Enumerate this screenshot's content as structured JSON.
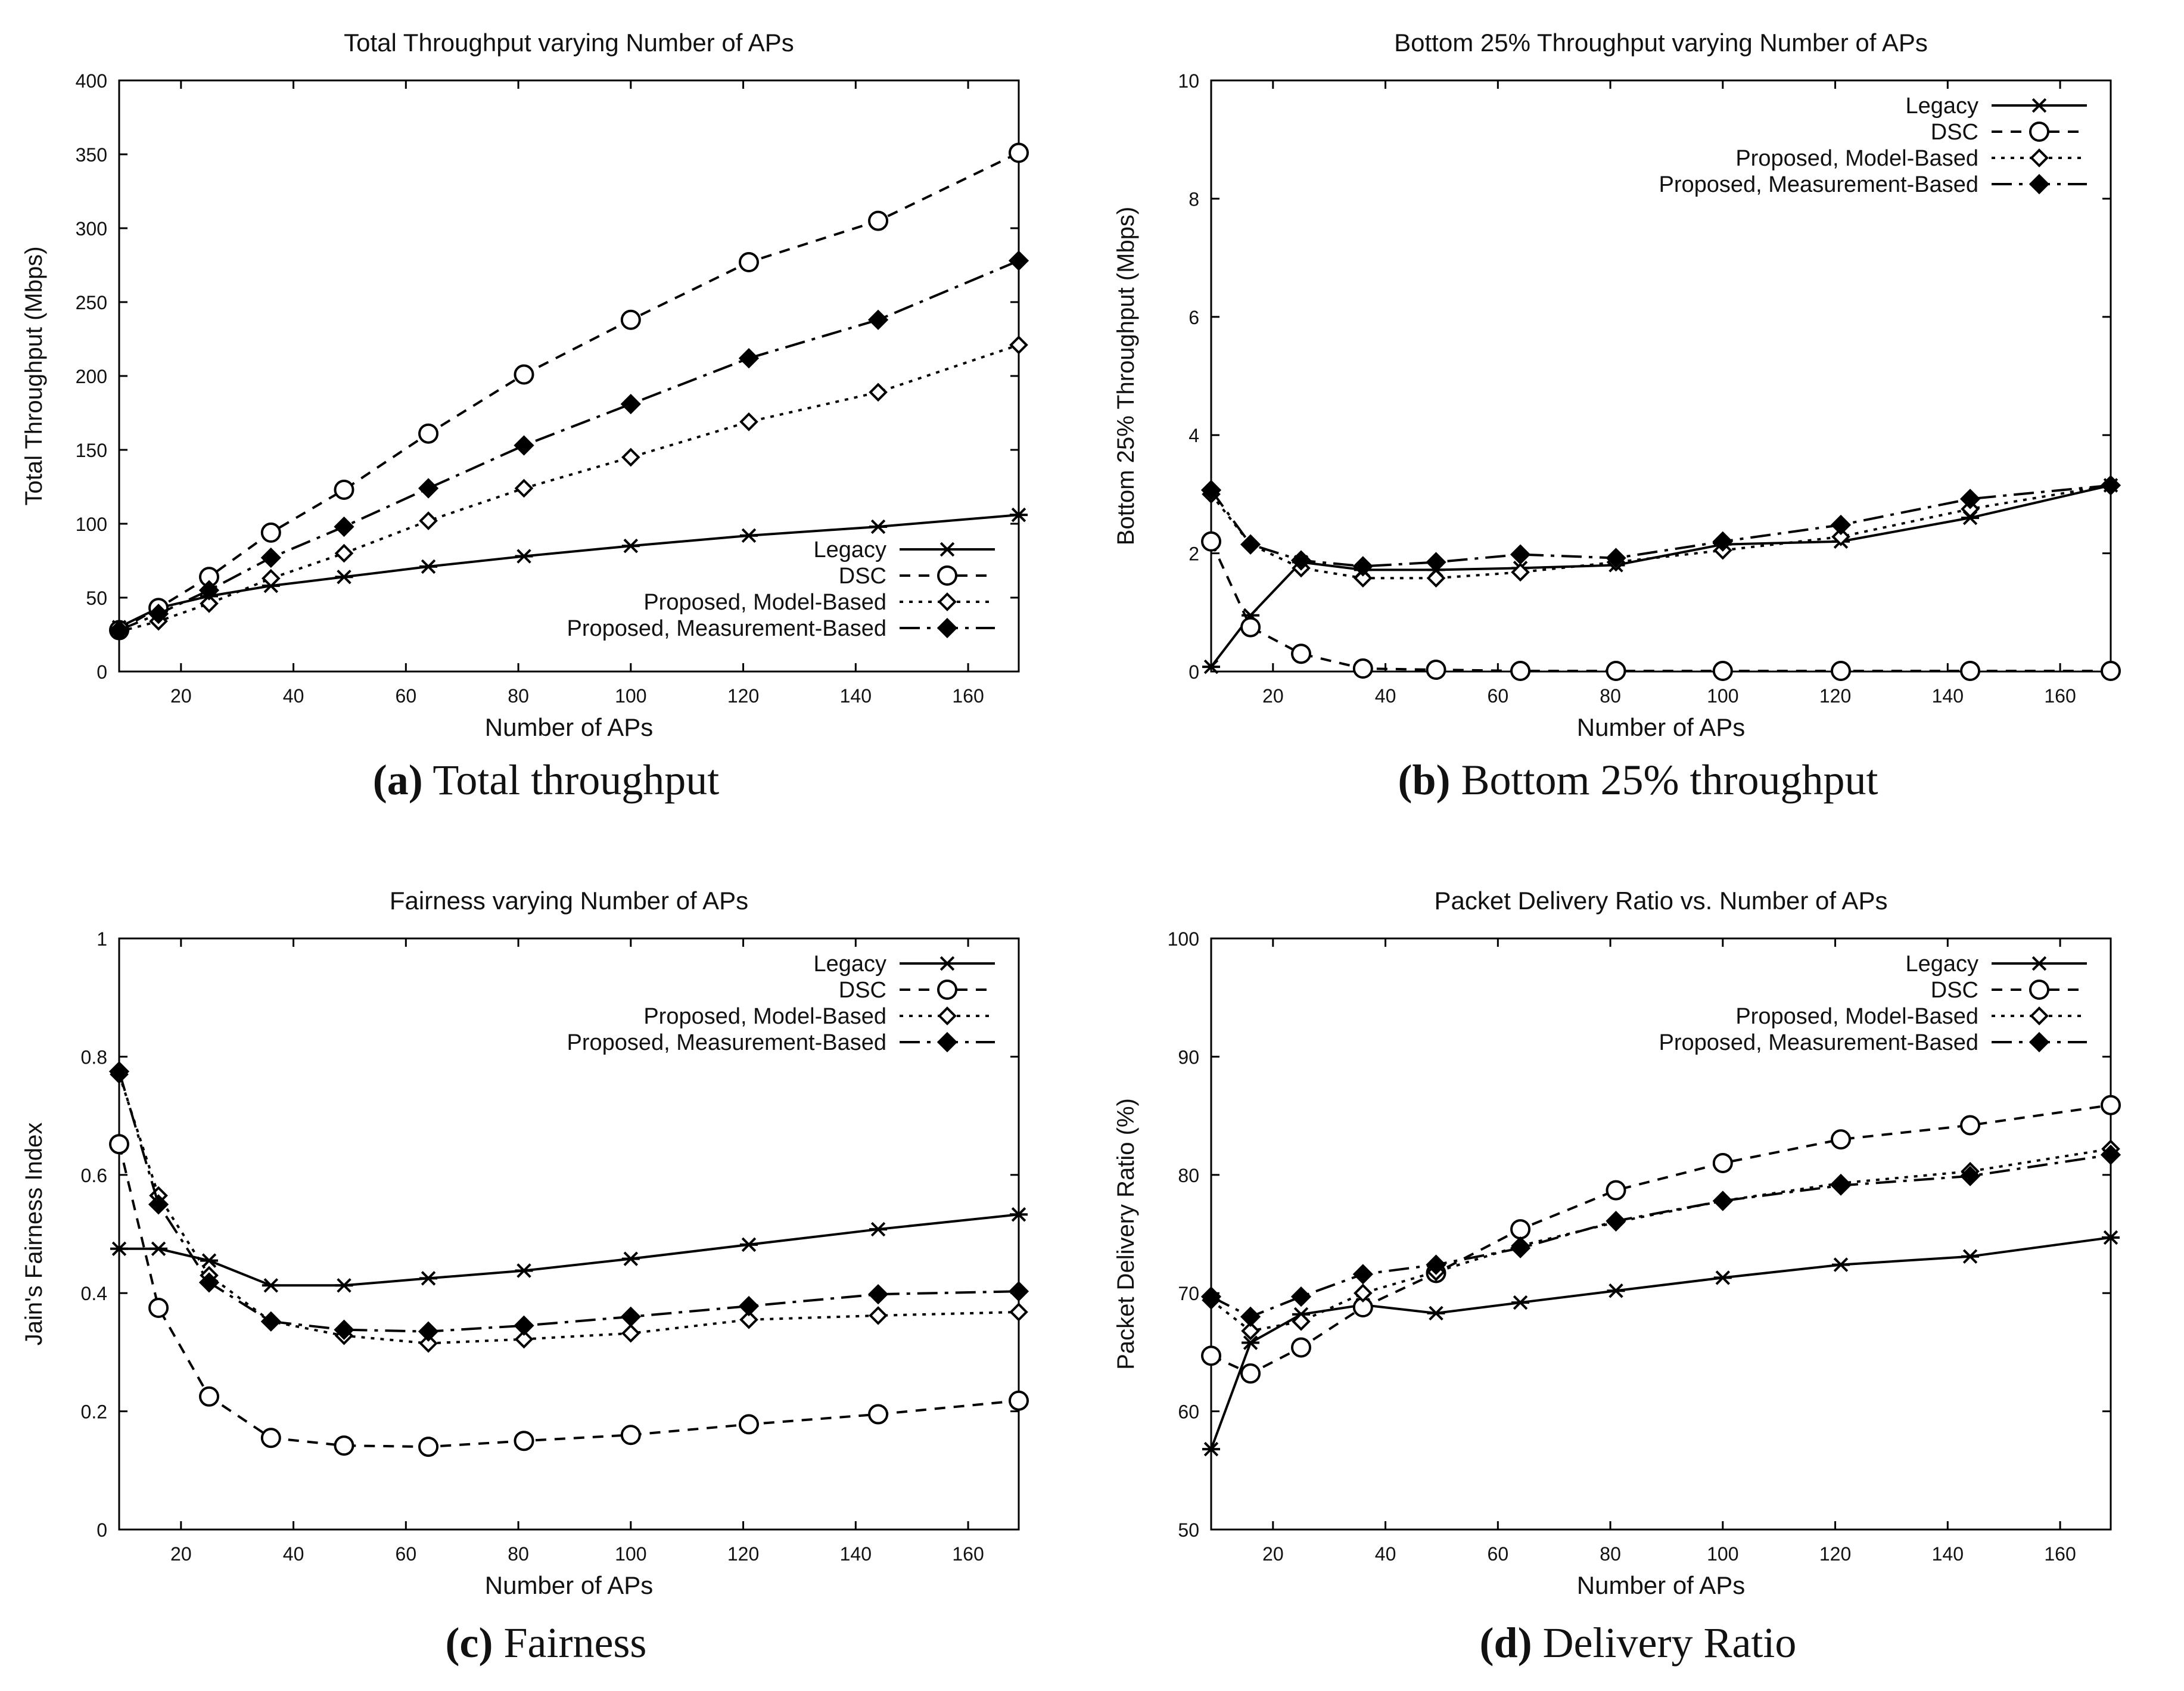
{
  "series_names": [
    "Legacy",
    "DSC",
    "Proposed, Model-Based",
    "Proposed, Measurement-Based"
  ],
  "series_styles": [
    {
      "marker": "star",
      "dash": "none",
      "color": "#000000"
    },
    {
      "marker": "circle",
      "dash": "18,14",
      "color": "#000000"
    },
    {
      "marker": "diamond-open",
      "dash": "6,10",
      "color": "#000000"
    },
    {
      "marker": "diamond-filled",
      "dash": "34,12,6,12",
      "color": "#000000"
    }
  ],
  "captions": [
    {
      "letter": "(a)",
      "text": " Total throughput"
    },
    {
      "letter": "(b)",
      "text": " Bottom 25% throughput"
    },
    {
      "letter": "(c)",
      "text": " Fairness"
    },
    {
      "letter": "(d)",
      "text": " Delivery Ratio"
    }
  ],
  "chart_data": [
    {
      "type": "line",
      "title": "Total Throughput varying Number of APs",
      "xlabel": "Number of APs",
      "ylabel": "Total Throughput (Mbps)",
      "xlim": [
        9,
        169
      ],
      "ylim": [
        0,
        400
      ],
      "xticks": [
        20,
        40,
        60,
        80,
        100,
        120,
        140,
        160
      ],
      "yticks": [
        0,
        50,
        100,
        150,
        200,
        250,
        300,
        350,
        400
      ],
      "legend": "bottom-right",
      "x": [
        9,
        16,
        25,
        36,
        49,
        64,
        81,
        100,
        121,
        144,
        169
      ],
      "series": [
        {
          "name": "Legacy",
          "values": [
            30,
            43,
            51,
            58,
            64,
            71,
            78,
            85,
            92,
            98,
            106
          ]
        },
        {
          "name": "DSC",
          "values": [
            28,
            43,
            64,
            94,
            123,
            161,
            201,
            238,
            277,
            305,
            351
          ]
        },
        {
          "name": "Proposed, Model-Based",
          "values": [
            27,
            34,
            46,
            63,
            80,
            102,
            124,
            145,
            169,
            189,
            221
          ]
        },
        {
          "name": "Proposed, Measurement-Based",
          "values": [
            28,
            39,
            55,
            77,
            98,
            124,
            153,
            181,
            212,
            238,
            278
          ]
        }
      ]
    },
    {
      "type": "line",
      "title": "Bottom 25% Throughput varying Number of APs",
      "xlabel": "Number of APs",
      "ylabel": "Bottom 25% Throughput (Mbps)",
      "xlim": [
        9,
        169
      ],
      "ylim": [
        0,
        10
      ],
      "xticks": [
        20,
        40,
        60,
        80,
        100,
        120,
        140,
        160
      ],
      "yticks": [
        0,
        2,
        4,
        6,
        8,
        10
      ],
      "legend": "top-right",
      "x": [
        9,
        16,
        25,
        36,
        49,
        64,
        81,
        100,
        121,
        144,
        169
      ],
      "series": [
        {
          "name": "Legacy",
          "values": [
            0.08,
            0.95,
            1.85,
            1.72,
            1.72,
            1.75,
            1.8,
            2.15,
            2.2,
            2.6,
            3.15
          ]
        },
        {
          "name": "DSC",
          "values": [
            2.2,
            0.75,
            0.3,
            0.05,
            0.03,
            0.01,
            0.01,
            0.01,
            0.01,
            0.01,
            0.01
          ]
        },
        {
          "name": "Proposed, Model-Based",
          "values": [
            3.0,
            2.15,
            1.75,
            1.58,
            1.58,
            1.68,
            1.85,
            2.05,
            2.28,
            2.75,
            3.15
          ]
        },
        {
          "name": "Proposed, Measurement-Based",
          "values": [
            3.07,
            2.15,
            1.88,
            1.78,
            1.85,
            1.98,
            1.92,
            2.2,
            2.48,
            2.92,
            3.15
          ]
        }
      ]
    },
    {
      "type": "line",
      "title": "Fairness varying Number of APs",
      "xlabel": "Number of APs",
      "ylabel": "Jain's Fairness Index",
      "xlim": [
        9,
        169
      ],
      "ylim": [
        0,
        1
      ],
      "xticks": [
        20,
        40,
        60,
        80,
        100,
        120,
        140,
        160
      ],
      "yticks": [
        0,
        0.2,
        0.4,
        0.6,
        0.8,
        1
      ],
      "legend": "top-right",
      "x": [
        9,
        16,
        25,
        36,
        49,
        64,
        81,
        100,
        121,
        144,
        169
      ],
      "series": [
        {
          "name": "Legacy",
          "values": [
            0.475,
            0.475,
            0.455,
            0.413,
            0.413,
            0.425,
            0.438,
            0.458,
            0.482,
            0.508,
            0.533
          ]
        },
        {
          "name": "DSC",
          "values": [
            0.652,
            0.375,
            0.225,
            0.155,
            0.142,
            0.14,
            0.15,
            0.16,
            0.178,
            0.195,
            0.218
          ]
        },
        {
          "name": "Proposed, Model-Based",
          "values": [
            0.77,
            0.565,
            0.43,
            0.352,
            0.328,
            0.315,
            0.322,
            0.332,
            0.355,
            0.362,
            0.368
          ]
        },
        {
          "name": "Proposed, Measurement-Based",
          "values": [
            0.775,
            0.55,
            0.418,
            0.352,
            0.338,
            0.335,
            0.345,
            0.36,
            0.378,
            0.398,
            0.403
          ]
        }
      ]
    },
    {
      "type": "line",
      "title": "Packet Delivery Ratio vs. Number of APs",
      "xlabel": "Number of APs",
      "ylabel": "Packet Delivery Ratio (%)",
      "xlim": [
        9,
        169
      ],
      "ylim": [
        50,
        100
      ],
      "xticks": [
        20,
        40,
        60,
        80,
        100,
        120,
        140,
        160
      ],
      "yticks": [
        50,
        60,
        70,
        80,
        90,
        100
      ],
      "legend": "top-right",
      "x": [
        9,
        16,
        25,
        36,
        49,
        64,
        81,
        100,
        121,
        144,
        169
      ],
      "series": [
        {
          "name": "Legacy",
          "values": [
            56.8,
            65.8,
            68.2,
            69.0,
            68.3,
            69.2,
            70.2,
            71.3,
            72.4,
            73.1,
            74.7
          ]
        },
        {
          "name": "DSC",
          "values": [
            64.7,
            63.2,
            65.4,
            68.8,
            71.7,
            75.4,
            78.7,
            81.0,
            83.0,
            84.2,
            85.9
          ]
        },
        {
          "name": "Proposed, Model-Based",
          "values": [
            69.4,
            66.8,
            67.6,
            70.0,
            71.8,
            74.0,
            76.0,
            77.8,
            79.3,
            80.3,
            82.2
          ]
        },
        {
          "name": "Proposed, Measurement-Based",
          "values": [
            69.7,
            68.0,
            69.7,
            71.6,
            72.4,
            73.8,
            76.1,
            77.8,
            79.1,
            79.9,
            81.7
          ]
        }
      ]
    }
  ]
}
